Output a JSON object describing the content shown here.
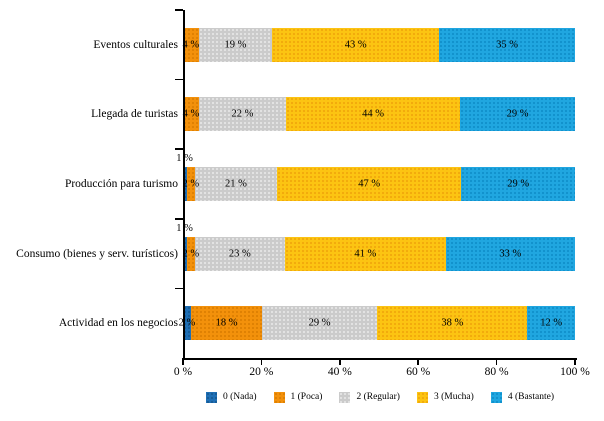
{
  "chart_data": {
    "type": "bar",
    "orientation": "horizontal",
    "stacked": true,
    "title": "",
    "background": "#FFFFFF",
    "grid": false,
    "legend_position": "bottom",
    "xlim": [
      0,
      100
    ],
    "categories": [
      "Eventos culturales",
      "Llegada de turistas",
      "Producción para turismo",
      "Consumo (bienes y serv. turísticos)",
      "Actividad en los negocios"
    ],
    "series": [
      {
        "name": "0 (Nada)",
        "color": "#1F6FB5",
        "dot": "#14578F",
        "values": [
          0,
          0,
          1,
          1,
          2
        ]
      },
      {
        "name": "1 (Poca)",
        "color": "#F3910B",
        "dot": "#D87C00",
        "values": [
          4,
          4,
          2,
          2,
          18
        ]
      },
      {
        "name": "2 (Regular)",
        "color": "#CBCBCB",
        "dot": "#E9E9E9",
        "values": [
          19,
          22,
          21,
          23,
          29
        ]
      },
      {
        "name": "3 (Mucha)",
        "color": "#FCC412",
        "dot": "#EFA30A",
        "values": [
          43,
          44,
          47,
          41,
          38
        ]
      },
      {
        "name": "4 (Bastante)",
        "color": "#20A6E0",
        "dot": "#0D8CC7",
        "values": [
          35,
          29,
          29,
          33,
          12
        ]
      }
    ],
    "x_ticks": [
      {
        "value": 0,
        "label": "0 %"
      },
      {
        "value": 20,
        "label": "20 %"
      },
      {
        "value": 40,
        "label": "40 %"
      },
      {
        "value": 60,
        "label": "60 %"
      },
      {
        "value": 80,
        "label": "80 %"
      },
      {
        "value": 100,
        "label": "100 %"
      }
    ],
    "value_label_suffix": " %"
  }
}
